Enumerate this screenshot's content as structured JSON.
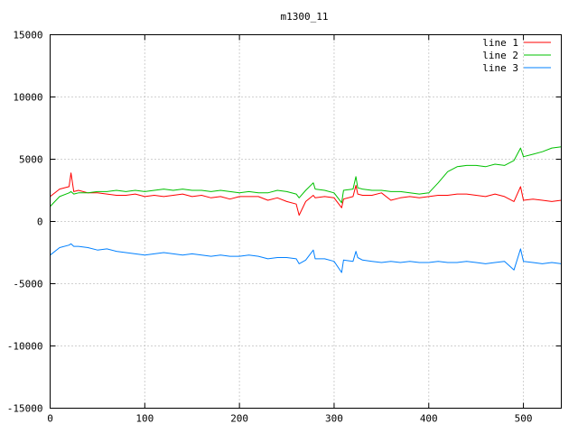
{
  "chart_data": {
    "type": "line",
    "title": "m1300_11",
    "xlabel": "",
    "ylabel": "",
    "xlim": [
      0,
      540
    ],
    "ylim": [
      -15000,
      15000
    ],
    "x_ticks": [
      0,
      100,
      200,
      300,
      400,
      500
    ],
    "x_tick_labels": [
      "0",
      "100",
      "200",
      "300",
      "400",
      "500"
    ],
    "y_ticks": [
      15000,
      10000,
      5000,
      0,
      -5000,
      -10000,
      -15000
    ],
    "y_tick_labels": [
      "15000",
      "10000",
      "5000",
      "0",
      "-5000",
      "-10000",
      "-15000"
    ],
    "grid": true,
    "legend_position": "top-right",
    "x": [
      0,
      10,
      20,
      22,
      25,
      30,
      40,
      50,
      60,
      70,
      80,
      90,
      100,
      110,
      120,
      130,
      140,
      150,
      160,
      170,
      180,
      190,
      200,
      210,
      220,
      230,
      240,
      250,
      260,
      263,
      270,
      278,
      280,
      290,
      300,
      308,
      310,
      320,
      323,
      325,
      330,
      340,
      350,
      360,
      370,
      380,
      390,
      400,
      410,
      420,
      430,
      440,
      450,
      460,
      470,
      480,
      490,
      497,
      500,
      510,
      520,
      530,
      540
    ],
    "series": [
      {
        "name": "line 1",
        "color": "#ff0000",
        "values": [
          2000,
          2600,
          2800,
          3900,
          2400,
          2500,
          2300,
          2300,
          2200,
          2100,
          2100,
          2200,
          2000,
          2100,
          2000,
          2100,
          2200,
          2000,
          2100,
          1900,
          2000,
          1800,
          2000,
          2000,
          2000,
          1700,
          1900,
          1600,
          1400,
          500,
          1600,
          2100,
          1900,
          2000,
          1900,
          1100,
          1800,
          2000,
          2900,
          2200,
          2100,
          2100,
          2300,
          1700,
          1900,
          2000,
          1900,
          2000,
          2100,
          2100,
          2200,
          2200,
          2100,
          2000,
          2200,
          2000,
          1600,
          2800,
          1700,
          1800,
          1700,
          1600,
          1700
        ]
      },
      {
        "name": "line 2",
        "color": "#00c000",
        "values": [
          1200,
          2000,
          2300,
          2400,
          2200,
          2300,
          2300,
          2400,
          2400,
          2500,
          2400,
          2500,
          2400,
          2500,
          2600,
          2500,
          2600,
          2500,
          2500,
          2400,
          2500,
          2400,
          2300,
          2400,
          2300,
          2300,
          2500,
          2400,
          2200,
          1900,
          2500,
          3100,
          2600,
          2500,
          2300,
          1500,
          2500,
          2600,
          3600,
          2700,
          2600,
          2500,
          2500,
          2400,
          2400,
          2300,
          2200,
          2300,
          3100,
          4000,
          4400,
          4500,
          4500,
          4400,
          4600,
          4500,
          4900,
          5900,
          5200,
          5400,
          5600,
          5900,
          6000
        ]
      },
      {
        "name": "line 3",
        "color": "#0080ff",
        "values": [
          -2700,
          -2100,
          -1900,
          -1800,
          -2000,
          -2000,
          -2100,
          -2300,
          -2200,
          -2400,
          -2500,
          -2600,
          -2700,
          -2600,
          -2500,
          -2600,
          -2700,
          -2600,
          -2700,
          -2800,
          -2700,
          -2800,
          -2800,
          -2700,
          -2800,
          -3000,
          -2900,
          -2900,
          -3000,
          -3400,
          -3100,
          -2300,
          -3000,
          -3000,
          -3200,
          -4100,
          -3100,
          -3200,
          -2400,
          -2900,
          -3100,
          -3200,
          -3300,
          -3200,
          -3300,
          -3200,
          -3300,
          -3300,
          -3200,
          -3300,
          -3300,
          -3200,
          -3300,
          -3400,
          -3300,
          -3200,
          -3900,
          -2200,
          -3200,
          -3300,
          -3400,
          -3300,
          -3400
        ]
      }
    ]
  }
}
